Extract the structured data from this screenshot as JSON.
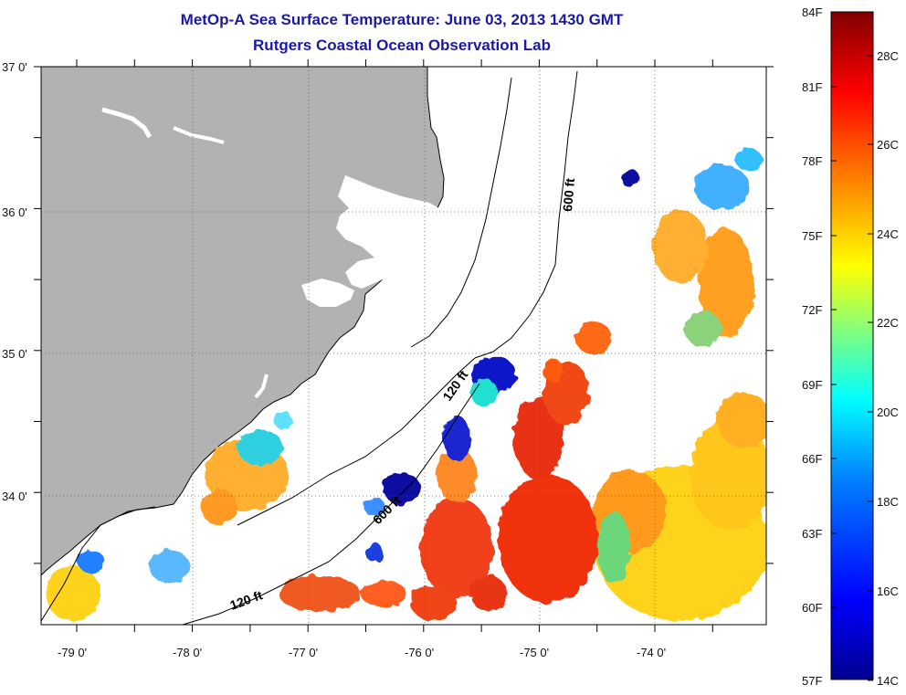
{
  "title": "MetOp-A Sea Surface Temperature:  June 03, 2013 1430 GMT",
  "subtitle": "Rutgers Coastal Ocean Observation Lab",
  "map": {
    "lat_labels": [
      "37 0'",
      "36 0'",
      "35 0'",
      "34 0'"
    ],
    "lon_labels": [
      "-79 0'",
      "-78 0'",
      "-77 0'",
      "-76 0'",
      "-75 0'",
      "-74 0'"
    ],
    "contours": [
      {
        "label": "600 ft",
        "depth_ft": 600
      },
      {
        "label": "120 ft",
        "depth_ft": 120
      },
      {
        "label": "600 ft",
        "depth_ft": 600
      },
      {
        "label": "120 ft",
        "depth_ft": 120
      }
    ],
    "colors": {
      "land": "#b2b2b2",
      "coast": "#000000",
      "water": "#ffffff"
    }
  },
  "colorbar": {
    "fahrenheit_labels": [
      "84F",
      "81F",
      "78F",
      "75F",
      "72F",
      "69F",
      "66F",
      "63F",
      "60F",
      "57F"
    ],
    "celsius_labels": [
      "28C",
      "26C",
      "24C",
      "22C",
      "20C",
      "18C",
      "16C",
      "14C"
    ],
    "stops": [
      "#00008f",
      "#0000ff",
      "#0080ff",
      "#00ffff",
      "#80ff80",
      "#ffff00",
      "#ff8000",
      "#ff0000",
      "#800000"
    ]
  }
}
